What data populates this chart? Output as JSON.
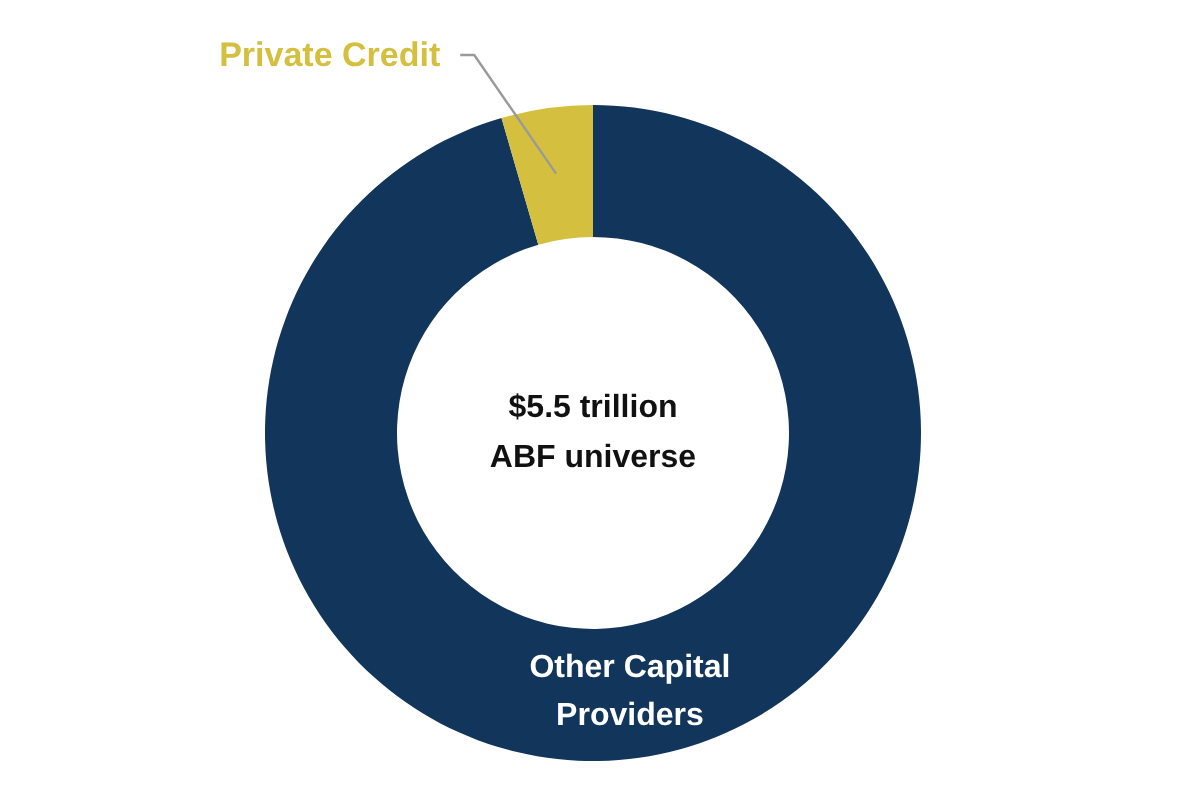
{
  "chart_data": {
    "type": "donut",
    "categories": [
      "Other Capital Providers",
      "Private Credit"
    ],
    "values": [
      95.5,
      4.5
    ],
    "colors": [
      "#12355b",
      "#d4bf3f"
    ],
    "annotations": [
      "$5.5 trillion ABF universe"
    ]
  }
}
